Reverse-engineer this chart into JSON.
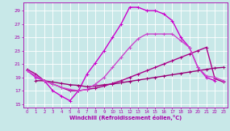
{
  "xlabel": "Windchill (Refroidissement éolien,°C)",
  "background_color": "#c8e8e8",
  "grid_color": "#ffffff",
  "xlim": [
    -0.5,
    23.5
  ],
  "ylim": [
    14.5,
    30.2
  ],
  "yticks": [
    15,
    17,
    19,
    21,
    23,
    25,
    27,
    29
  ],
  "xticks": [
    0,
    1,
    2,
    3,
    4,
    5,
    6,
    7,
    8,
    9,
    10,
    11,
    12,
    13,
    14,
    15,
    16,
    17,
    18,
    19,
    20,
    21,
    22,
    23
  ],
  "series": [
    {
      "x": [
        0,
        1,
        2,
        3,
        4,
        5,
        6,
        7,
        8,
        9,
        10,
        11,
        12,
        13,
        14,
        15,
        16,
        17,
        18,
        19,
        20,
        21,
        22
      ],
      "y": [
        20.0,
        19.0,
        18.5,
        17.0,
        16.2,
        15.5,
        17.0,
        19.5,
        21.2,
        23.0,
        25.0,
        27.0,
        29.5,
        29.5,
        29.0,
        29.0,
        28.5,
        27.5,
        25.0,
        23.5,
        20.5,
        19.0,
        18.5
      ],
      "color": "#cc00cc",
      "linewidth": 1.0,
      "marker": "+"
    },
    {
      "x": [
        1,
        2,
        3,
        4,
        5,
        6,
        7,
        8,
        9,
        10,
        11,
        12,
        13,
        14,
        15,
        16,
        17,
        18,
        19,
        20,
        21,
        22,
        23
      ],
      "y": [
        18.5,
        18.5,
        18.3,
        18.1,
        17.9,
        17.8,
        17.6,
        17.7,
        17.9,
        18.0,
        18.2,
        18.4,
        18.6,
        18.8,
        19.0,
        19.2,
        19.4,
        19.6,
        19.8,
        20.0,
        20.2,
        20.4,
        20.5
      ],
      "color": "#990077",
      "linewidth": 1.0,
      "marker": "+"
    },
    {
      "x": [
        0,
        1,
        2,
        3,
        4,
        5,
        6,
        7,
        8,
        9,
        10,
        11,
        12,
        13,
        14,
        15,
        16,
        17,
        18,
        19,
        20,
        21,
        22,
        23
      ],
      "y": [
        20.2,
        19.5,
        18.5,
        18.0,
        17.5,
        17.0,
        17.0,
        17.2,
        17.4,
        17.7,
        18.1,
        18.5,
        19.0,
        19.5,
        20.0,
        20.5,
        21.0,
        21.5,
        22.0,
        22.5,
        23.0,
        23.5,
        18.8,
        18.3
      ],
      "color": "#aa0088",
      "linewidth": 1.0,
      "marker": "+"
    },
    {
      "x": [
        0,
        1,
        2,
        3,
        4,
        5,
        6,
        7,
        8,
        9,
        10,
        11,
        12,
        13,
        14,
        15,
        16,
        17,
        18,
        19,
        20,
        21,
        22,
        23
      ],
      "y": [
        20.0,
        19.2,
        18.5,
        18.0,
        17.5,
        17.2,
        17.0,
        17.2,
        18.0,
        19.0,
        20.5,
        22.0,
        23.5,
        24.8,
        25.5,
        25.5,
        25.5,
        25.5,
        24.5,
        23.5,
        20.5,
        19.2,
        19.0,
        18.5
      ],
      "color": "#cc44cc",
      "linewidth": 1.0,
      "marker": "+"
    }
  ]
}
